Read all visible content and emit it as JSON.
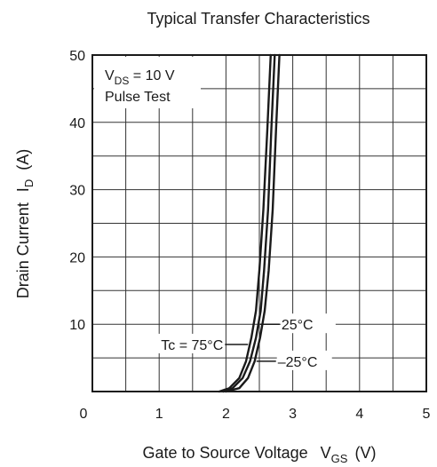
{
  "chart_data": {
    "type": "line",
    "title": "Typical Transfer Characteristics",
    "xlabel": "Gate to Source Voltage",
    "xlabel_symbol": "V",
    "xlabel_subscript": "GS",
    "xlabel_unit": "(V)",
    "ylabel": "Drain Current",
    "ylabel_symbol": "I",
    "ylabel_subscript": "D",
    "ylabel_unit": "(A)",
    "xlim": [
      0,
      5
    ],
    "ylim": [
      0,
      50
    ],
    "x_ticks": [
      0,
      1,
      2,
      3,
      4,
      5
    ],
    "y_ticks": [
      10,
      20,
      30,
      40,
      50
    ],
    "x_tick_labels": [
      "0",
      "1",
      "2",
      "3",
      "4",
      "5"
    ],
    "y_tick_labels": [
      "10",
      "20",
      "30",
      "40",
      "50"
    ],
    "grid": true,
    "conditions": {
      "line1_prefix": "V",
      "line1_sub": "DS",
      "line1_suffix": " = 10 V",
      "line2": "Pulse Test"
    },
    "series": [
      {
        "name": "Tc = 75°C",
        "x": [
          1.9,
          2.05,
          2.2,
          2.3,
          2.38,
          2.45,
          2.5,
          2.56,
          2.62,
          2.67
        ],
        "y": [
          0,
          0.5,
          2,
          4.5,
          8,
          12,
          18,
          27,
          39,
          50
        ]
      },
      {
        "name": "25°C",
        "x": [
          1.96,
          2.1,
          2.25,
          2.36,
          2.45,
          2.52,
          2.57,
          2.63,
          2.68,
          2.73
        ],
        "y": [
          0,
          0.5,
          2,
          4.5,
          8,
          12,
          18,
          27,
          39,
          50
        ]
      },
      {
        "name": "–25°C",
        "x": [
          2.0,
          2.2,
          2.33,
          2.43,
          2.51,
          2.58,
          2.64,
          2.7,
          2.75,
          2.8
        ],
        "y": [
          0,
          0.5,
          2,
          4.5,
          8,
          12,
          18,
          27,
          39,
          50
        ]
      }
    ],
    "annotations": [
      {
        "text": "Tc = 75°C",
        "series": 0,
        "at_y": 7
      },
      {
        "text": "25°C",
        "series": 1,
        "at_y": 10
      },
      {
        "text": "–25°C",
        "series": 2,
        "at_y": 4.5
      }
    ]
  }
}
